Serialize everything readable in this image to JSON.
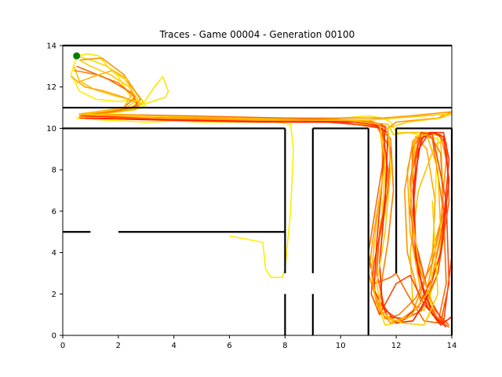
{
  "chart_data": {
    "type": "line",
    "title": "Traces - Game 00004 - Generation 00100",
    "xlabel": "",
    "ylabel": "",
    "xlim": [
      0,
      14
    ],
    "ylim": [
      0,
      14
    ],
    "xticks": [
      0,
      2,
      4,
      6,
      8,
      10,
      12,
      14
    ],
    "yticks": [
      0,
      2,
      4,
      6,
      8,
      10,
      12,
      14
    ],
    "grid": false,
    "colors": {
      "walls": "#000000",
      "start_point": "#008000",
      "trace_palette": [
        "#ffee00",
        "#ffd400",
        "#ffb000",
        "#ff8c00",
        "#ff6a00",
        "#ff4500",
        "#ff2000"
      ]
    },
    "start_point": {
      "x": 0.5,
      "y": 13.5
    },
    "walls": [
      {
        "name": "top-boundary",
        "x": [
          0,
          14
        ],
        "y": [
          14,
          14
        ]
      },
      {
        "name": "corridor-top-left",
        "x": [
          0,
          3
        ],
        "y": [
          11,
          11
        ]
      },
      {
        "name": "corridor-top-right",
        "x": [
          3,
          14
        ],
        "y": [
          11,
          11
        ]
      },
      {
        "name": "corridor-bottom-left",
        "x": [
          0,
          8
        ],
        "y": [
          10,
          10
        ]
      },
      {
        "name": "corridor-bottom-mid",
        "x": [
          9,
          11
        ],
        "y": [
          10,
          10
        ]
      },
      {
        "name": "corridor-bottom-right",
        "x": [
          12,
          14
        ],
        "y": [
          10,
          10
        ]
      },
      {
        "name": "divider-left-a",
        "x": [
          0,
          1
        ],
        "y": [
          5,
          5
        ]
      },
      {
        "name": "divider-left-b",
        "x": [
          2,
          8
        ],
        "y": [
          5,
          5
        ]
      },
      {
        "name": "wall-x8-upper",
        "x": [
          8,
          8
        ],
        "y": [
          10,
          3
        ]
      },
      {
        "name": "wall-x8-lower",
        "x": [
          8,
          8
        ],
        "y": [
          2,
          0
        ]
      },
      {
        "name": "wall-x9-upper",
        "x": [
          9,
          9
        ],
        "y": [
          10,
          3
        ]
      },
      {
        "name": "wall-x9-lower",
        "x": [
          9,
          9
        ],
        "y": [
          2,
          0
        ]
      },
      {
        "name": "wall-x11",
        "x": [
          11,
          11
        ],
        "y": [
          10,
          0
        ]
      },
      {
        "name": "wall-x12",
        "x": [
          12,
          12
        ],
        "y": [
          10,
          3
        ]
      },
      {
        "name": "wall-x14",
        "x": [
          14,
          14
        ],
        "y": [
          10,
          0
        ]
      }
    ],
    "series": [
      {
        "color": "#ffee00",
        "x": [
          0.5,
          0.3,
          0.6,
          1.2,
          2.0,
          2.8,
          3.0,
          2.6,
          1.4,
          0.8,
          0.5,
          1.5,
          3.0,
          5.0,
          7.0,
          8.2,
          8.3,
          8.2,
          8.0,
          7.9,
          7.5,
          7.3,
          7.2,
          6.0
        ],
        "y": [
          13.5,
          12.6,
          11.8,
          11.4,
          11.3,
          11.4,
          11.1,
          10.9,
          10.7,
          10.6,
          10.5,
          10.4,
          10.3,
          10.4,
          10.4,
          10.2,
          9.0,
          6.0,
          3.2,
          2.8,
          2.8,
          3.2,
          4.5,
          4.8
        ]
      },
      {
        "color": "#ffe600",
        "x": [
          0.5,
          0.9,
          1.3,
          1.6,
          2.0,
          2.3,
          2.6,
          2.9,
          3.3,
          3.6,
          3.8,
          3.7,
          3.2,
          2.5,
          1.8,
          1.2,
          0.6,
          2.0,
          5.0,
          8.0,
          10.0,
          11.0,
          11.5,
          11.8,
          12.0,
          12.5,
          13.0,
          13.5,
          13.2,
          13.0
        ],
        "y": [
          13.5,
          13.6,
          13.5,
          13.0,
          12.5,
          11.8,
          11.3,
          11.2,
          12.0,
          12.5,
          11.8,
          11.5,
          11.3,
          11.0,
          10.8,
          10.7,
          10.6,
          10.5,
          10.3,
          10.3,
          10.5,
          10.6,
          10.5,
          10.3,
          9.8,
          9.8,
          9.6,
          9.5,
          1.0,
          0.5
        ]
      },
      {
        "color": "#ffd400",
        "x": [
          0.5,
          1.0,
          1.6,
          2.2,
          2.6,
          2.9,
          2.7,
          2.1,
          1.2,
          0.6,
          2.5,
          5.5,
          8.5,
          10.5,
          11.4,
          11.6,
          11.5,
          11.3,
          11.2,
          11.4,
          11.6,
          12.0,
          12.3
        ],
        "y": [
          13.5,
          13.3,
          13.0,
          12.4,
          11.8,
          11.3,
          11.0,
          10.8,
          10.7,
          10.6,
          10.5,
          10.5,
          10.4,
          10.3,
          10.0,
          8.0,
          6.0,
          4.0,
          2.5,
          1.2,
          0.5,
          0.6,
          0.8
        ]
      },
      {
        "color": "#ffc000",
        "x": [
          0.4,
          0.6,
          1.1,
          1.8,
          2.4,
          2.8,
          2.6,
          1.8,
          0.9,
          0.6,
          3.0,
          6.0,
          9.0,
          10.8,
          11.7,
          11.9,
          12.4,
          13.2,
          13.6,
          13.7,
          13.5,
          13.0,
          12.6,
          12.5,
          12.8,
          13.4,
          13.8
        ],
        "y": [
          13.0,
          12.3,
          11.9,
          11.6,
          11.4,
          11.2,
          10.9,
          10.8,
          10.7,
          10.6,
          10.5,
          10.4,
          10.4,
          10.3,
          10.2,
          9.7,
          9.8,
          9.8,
          9.6,
          6.0,
          3.0,
          1.2,
          1.5,
          4.0,
          7.0,
          9.2,
          9.5
        ]
      },
      {
        "color": "#ffaa00",
        "x": [
          0.3,
          0.8,
          1.5,
          2.2,
          2.7,
          2.4,
          1.5,
          0.7,
          3.0,
          6.0,
          9.0,
          11.0,
          11.7,
          11.8,
          11.6,
          11.3,
          11.2,
          11.5,
          12.0,
          12.6,
          13.0,
          13.3,
          13.4,
          13.1,
          12.7,
          12.4,
          12.5,
          12.9,
          13.5
        ],
        "y": [
          12.5,
          12.0,
          11.8,
          11.5,
          11.2,
          10.9,
          10.8,
          10.7,
          10.6,
          10.5,
          10.4,
          10.4,
          10.0,
          8.5,
          6.0,
          4.0,
          2.2,
          1.0,
          0.6,
          0.7,
          1.5,
          3.5,
          6.5,
          9.0,
          9.6,
          8.0,
          5.0,
          2.0,
          0.6
        ]
      },
      {
        "color": "#ff9400",
        "x": [
          0.6,
          1.4,
          2.2,
          2.8,
          2.5,
          1.6,
          0.8,
          4.0,
          7.0,
          10.0,
          11.5,
          12.5,
          14.0,
          13.5,
          12.0,
          11.5,
          11.5,
          11.2,
          11.0,
          11.4,
          11.8,
          12.2,
          12.6,
          13.0,
          13.6,
          13.8,
          13.6,
          13.1,
          12.6,
          12.3,
          12.4,
          12.9
        ],
        "y": [
          13.3,
          13.4,
          12.6,
          11.4,
          11.0,
          10.8,
          10.7,
          10.6,
          10.5,
          10.5,
          10.5,
          10.6,
          10.8,
          10.5,
          10.3,
          9.8,
          7.5,
          5.0,
          3.0,
          1.2,
          0.6,
          0.8,
          1.2,
          2.5,
          5.5,
          8.5,
          9.7,
          9.8,
          9.4,
          7.0,
          4.0,
          1.5
        ]
      },
      {
        "color": "#ff7f00",
        "x": [
          0.4,
          1.2,
          2.0,
          2.6,
          2.2,
          1.3,
          0.6,
          3.5,
          6.5,
          9.5,
          11.2,
          11.8,
          11.9,
          11.7,
          11.5,
          11.4,
          11.6,
          12.1,
          12.7,
          13.3,
          13.7,
          13.6,
          13.2,
          12.8,
          12.5,
          12.6,
          13.0,
          13.5,
          13.8
        ],
        "y": [
          12.8,
          12.6,
          12.2,
          11.5,
          11.0,
          10.8,
          10.7,
          10.6,
          10.5,
          10.4,
          10.3,
          9.5,
          7.0,
          4.5,
          2.8,
          1.5,
          0.8,
          1.0,
          1.8,
          3.5,
          6.0,
          8.8,
          9.7,
          9.5,
          7.5,
          4.5,
          2.0,
          0.8,
          0.7
        ]
      },
      {
        "color": "#ff6a00",
        "x": [
          0.5,
          1.6,
          2.5,
          2.7,
          1.8,
          0.7,
          4.5,
          8.0,
          10.5,
          11.5,
          11.6,
          11.3,
          11.0,
          11.2,
          11.8,
          12.0,
          12.4,
          13.0,
          13.5,
          13.8,
          13.7,
          13.3,
          12.9,
          12.6,
          12.5,
          12.9,
          13.4,
          13.9
        ],
        "y": [
          13.0,
          12.4,
          11.7,
          11.1,
          10.8,
          10.7,
          10.6,
          10.5,
          10.4,
          10.2,
          9.0,
          6.5,
          4.0,
          2.5,
          2.8,
          3.0,
          2.0,
          0.7,
          0.6,
          2.5,
          6.0,
          9.5,
          9.8,
          9.0,
          6.0,
          3.0,
          1.2,
          0.5
        ]
      },
      {
        "color": "#ff5a00",
        "x": [
          0.6,
          3.0,
          6.5,
          9.5,
          11.3,
          11.8,
          11.7,
          11.4,
          11.3,
          11.6,
          12.2,
          12.9,
          13.5,
          13.9,
          13.8,
          13.4,
          13.0,
          12.7,
          12.6,
          12.9,
          13.4,
          13.9
        ],
        "y": [
          10.6,
          10.5,
          10.4,
          10.3,
          10.1,
          9.0,
          7.0,
          5.0,
          3.0,
          1.2,
          0.7,
          1.2,
          3.0,
          6.5,
          9.3,
          9.8,
          9.7,
          8.5,
          5.5,
          2.5,
          0.9,
          0.4
        ]
      },
      {
        "color": "#ff4500",
        "x": [
          0.6,
          3.5,
          7.0,
          10.0,
          11.5,
          11.7,
          11.5,
          11.2,
          11.1,
          11.4,
          12.0,
          12.5,
          13.0,
          13.6,
          13.9,
          13.8,
          13.3,
          12.9,
          12.6,
          12.7,
          13.2,
          13.7,
          14.0
        ],
        "y": [
          10.5,
          10.4,
          10.3,
          10.3,
          10.0,
          8.0,
          5.5,
          3.5,
          2.0,
          1.0,
          2.5,
          2.9,
          1.5,
          0.6,
          2.5,
          6.5,
          9.7,
          9.8,
          8.0,
          4.5,
          1.8,
          0.6,
          3.8
        ]
      },
      {
        "color": "#ff3000",
        "x": [
          0.7,
          4.0,
          8.0,
          10.5,
          11.6,
          11.5,
          11.3,
          11.2,
          11.7,
          12.3,
          12.8,
          13.3,
          13.7,
          13.9,
          13.7,
          13.2,
          12.8,
          12.6,
          12.8,
          13.3,
          13.8
        ],
        "y": [
          10.6,
          10.5,
          10.4,
          10.3,
          10.1,
          7.5,
          4.5,
          2.2,
          0.9,
          0.8,
          1.4,
          2.8,
          5.5,
          8.5,
          9.8,
          9.8,
          9.0,
          6.0,
          3.0,
          1.0,
          0.4
        ]
      },
      {
        "color": "#ff2000",
        "x": [
          0.8,
          4.5,
          8.5,
          11.0,
          11.7,
          11.6,
          11.4,
          11.5,
          12.0,
          12.6,
          13.1,
          13.6,
          13.9,
          13.7,
          13.3,
          12.9,
          12.6,
          12.7,
          13.1,
          13.6,
          14.0
        ],
        "y": [
          10.5,
          10.4,
          10.3,
          10.3,
          9.8,
          6.5,
          3.5,
          1.5,
          0.6,
          0.7,
          1.8,
          4.0,
          7.5,
          9.6,
          9.8,
          9.5,
          7.0,
          3.8,
          1.4,
          0.5,
          0.9
        ]
      },
      {
        "color": "#ffcc00",
        "x": [
          0.6,
          1.0,
          1.7,
          2.4,
          2.7,
          2.3,
          1.4,
          0.7,
          3.0,
          6.0,
          9.0,
          11.0,
          12.0,
          13.0,
          14.0,
          13.6,
          12.4,
          11.7,
          11.8,
          11.6,
          11.3,
          11.5,
          12.2,
          13.0,
          13.5,
          13.3
        ],
        "y": [
          13.3,
          13.0,
          12.6,
          12.0,
          11.4,
          11.0,
          10.8,
          10.7,
          10.6,
          10.5,
          10.4,
          10.4,
          10.5,
          10.6,
          10.7,
          10.5,
          10.3,
          10.0,
          8.0,
          5.0,
          2.5,
          1.0,
          0.6,
          0.5,
          2.0,
          6.5
        ]
      },
      {
        "color": "#ffb800",
        "x": [
          0.5,
          1.1,
          1.8,
          2.3,
          2.5,
          2.2,
          1.2,
          0.6,
          3.5,
          7.0,
          10.2,
          11.4,
          11.6,
          11.3,
          11.1,
          11.3,
          11.9,
          12.5,
          13.2,
          13.6,
          13.5,
          13.1,
          12.7,
          12.5,
          12.8,
          13.3
        ],
        "y": [
          12.2,
          12.5,
          12.8,
          12.4,
          11.7,
          11.0,
          10.8,
          10.7,
          10.5,
          10.4,
          10.4,
          10.2,
          8.5,
          5.5,
          3.0,
          1.4,
          0.7,
          0.9,
          2.2,
          5.0,
          8.0,
          9.7,
          9.6,
          6.5,
          3.5,
          1.5
        ]
      }
    ]
  }
}
